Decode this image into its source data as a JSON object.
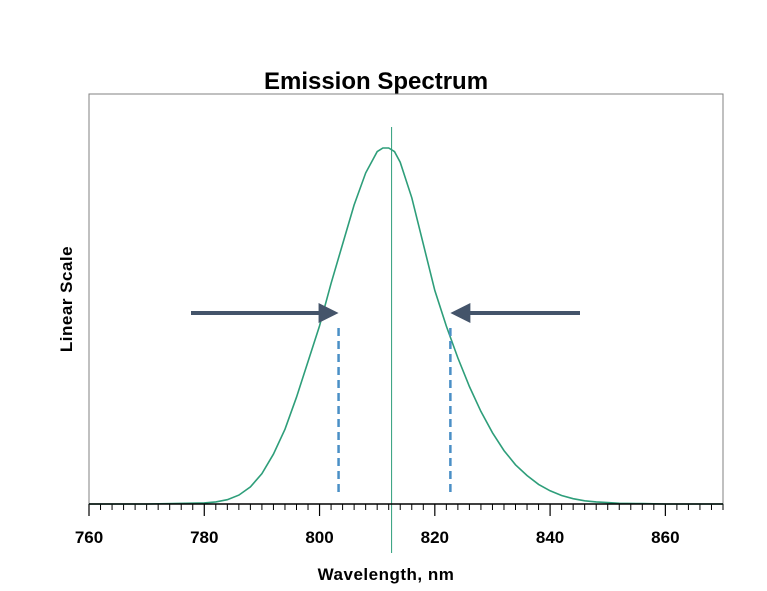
{
  "chart_data": {
    "type": "line",
    "title": "Emission Spectrum",
    "xlabel": "Wavelength, nm",
    "ylabel": "Linear Scale",
    "xlim": [
      760,
      870
    ],
    "ylim": [
      0,
      1.1
    ],
    "x_ticks": [
      760,
      780,
      800,
      820,
      840,
      860
    ],
    "x_tick_labels": [
      "760",
      "780",
      "800",
      "820",
      "840",
      "860"
    ],
    "x_minor_tick_step": 2,
    "y_ticks": [],
    "grid": false,
    "legend": "none",
    "colors": {
      "curve": "#2e9e7a",
      "peak_line": "#2e9e7a",
      "fwhm_lines": "#4a8fc6",
      "arrows": "#44546a",
      "frame": "#808080"
    },
    "series": [
      {
        "x": [
          760,
          770,
          780,
          782,
          784,
          786,
          788,
          790,
          792,
          794,
          796,
          798,
          800,
          802,
          804,
          806,
          808,
          810,
          811,
          812,
          813,
          814,
          816,
          818,
          820,
          822,
          824,
          826,
          828,
          830,
          832,
          834,
          836,
          838,
          840,
          842,
          844,
          846,
          848,
          850,
          852,
          856,
          860,
          870
        ],
        "y": [
          0,
          0,
          0.003,
          0.006,
          0.012,
          0.025,
          0.048,
          0.085,
          0.14,
          0.21,
          0.3,
          0.4,
          0.5,
          0.62,
          0.73,
          0.84,
          0.93,
          0.99,
          1.0,
          1.0,
          0.99,
          0.96,
          0.86,
          0.73,
          0.6,
          0.5,
          0.41,
          0.33,
          0.26,
          0.2,
          0.15,
          0.11,
          0.08,
          0.055,
          0.037,
          0.024,
          0.015,
          0.009,
          0.006,
          0.004,
          0.002,
          0.001,
          0,
          0
        ]
      }
    ],
    "peak_wavelength": 812.5,
    "fwhm_markers": {
      "x": [
        803.3,
        822.7
      ],
      "level": 0.5
    }
  }
}
